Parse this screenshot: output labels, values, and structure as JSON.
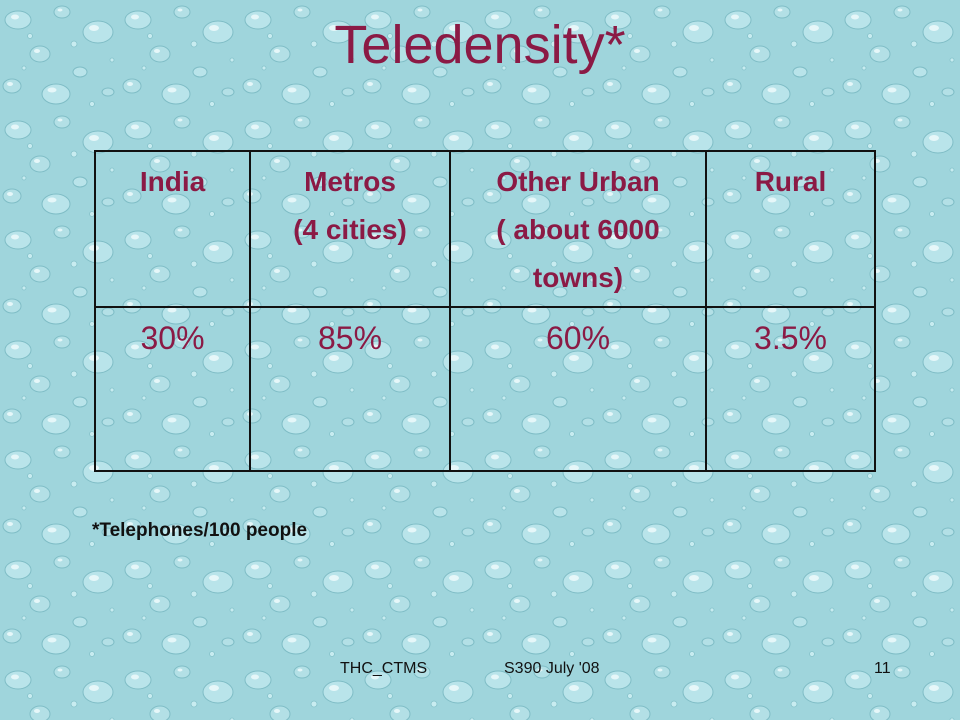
{
  "slide": {
    "title": "Teledensity*",
    "footnote": "*Telephones/100 people"
  },
  "table": {
    "headers": [
      {
        "lines": [
          "India"
        ]
      },
      {
        "lines": [
          "Metros",
          "(4 cities)"
        ]
      },
      {
        "lines": [
          "Other Urban",
          "( about 6000",
          "towns)"
        ]
      },
      {
        "lines": [
          "Rural"
        ]
      }
    ],
    "values": [
      "30%",
      "85%",
      "60%",
      "3.5%"
    ]
  },
  "footer": {
    "left": "THC_CTMS",
    "center": "S390 July '08",
    "page_number": "11"
  },
  "colors": {
    "title": "#8b1a45",
    "background": "#9fd5dc",
    "border": "#111111"
  }
}
